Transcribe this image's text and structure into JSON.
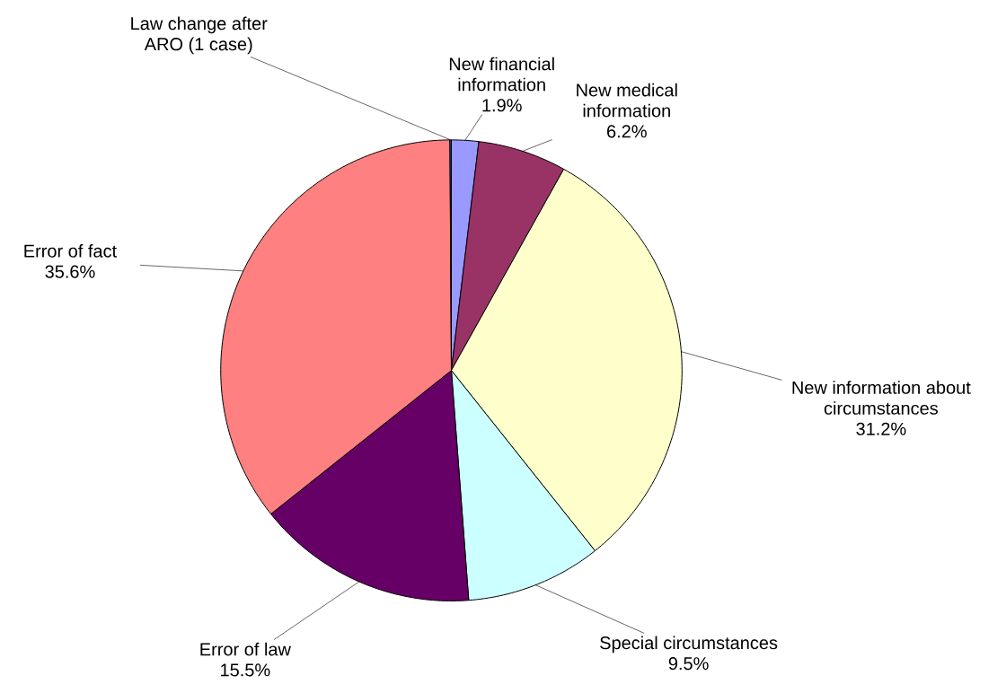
{
  "chart_data": {
    "type": "pie",
    "categories": [
      "New financial information",
      "New medical information",
      "New information about circumstances",
      "Special circumstances",
      "Error of law",
      "Error of fact",
      "Law change after ARO (1 case)"
    ],
    "values": [
      1.9,
      6.2,
      31.2,
      9.5,
      15.5,
      35.6,
      0.1
    ],
    "colors": [
      "#9999ff",
      "#993366",
      "#ffffcc",
      "#ccffff",
      "#660066",
      "#ff8080",
      "#0066cc"
    ],
    "value_labels": [
      "1.9%",
      "6.2%",
      "31.2%",
      "9.5%",
      "15.5%",
      "35.6%",
      null
    ]
  }
}
